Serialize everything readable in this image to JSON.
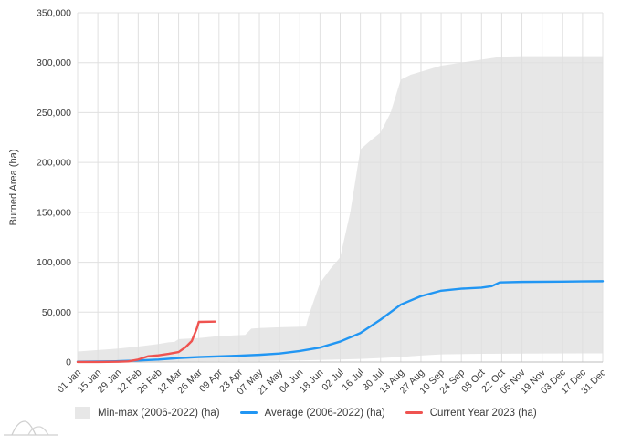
{
  "chart_data": {
    "type": "area",
    "title": "",
    "xlabel": "",
    "ylabel": "Burned Area (ha)",
    "grid": true,
    "legend_position": "bottom",
    "x_axis": {
      "unit": "weeks since 01 Jan",
      "range": [
        0,
        52
      ],
      "tick_interval_weeks": 2,
      "tick_labels": [
        "01 Jan",
        "15 Jan",
        "29 Jan",
        "12 Feb",
        "26 Feb",
        "12 Mar",
        "26 Mar",
        "09 Apr",
        "23 Apr",
        "07 May",
        "21 May",
        "04 Jun",
        "18 Jun",
        "02 Jul",
        "16 Jul",
        "30 Jul",
        "13 Aug",
        "27 Aug",
        "10 Sep",
        "24 Sep",
        "08 Oct",
        "22 Oct",
        "05 Nov",
        "19 Nov",
        "03 Dec",
        "17 Dec",
        "31 Dec"
      ]
    },
    "y_axis": {
      "range": [
        0,
        350000
      ],
      "ticks": [
        0,
        50000,
        100000,
        150000,
        200000,
        250000,
        300000,
        350000
      ],
      "tick_labels": [
        "0",
        "50,000",
        "100,000",
        "150,000",
        "200,000",
        "250,000",
        "300,000",
        "350,000"
      ]
    },
    "series": [
      {
        "id": "minmax",
        "name": "Min-max (2006-2022) (ha)",
        "type": "band",
        "color": "#e7e7e7",
        "max_points": [
          [
            0,
            10500
          ],
          [
            2,
            12000
          ],
          [
            4,
            13500
          ],
          [
            6,
            15500
          ],
          [
            8,
            18000
          ],
          [
            9,
            19800
          ],
          [
            9.6,
            20200
          ],
          [
            10,
            23000
          ],
          [
            12,
            24000
          ],
          [
            14,
            26000
          ],
          [
            16.6,
            27200
          ],
          [
            17.2,
            33500
          ],
          [
            18,
            34000
          ],
          [
            20,
            34800
          ],
          [
            22.6,
            35500
          ],
          [
            23,
            50000
          ],
          [
            24,
            79000
          ],
          [
            25,
            93000
          ],
          [
            26,
            105000
          ],
          [
            27,
            150000
          ],
          [
            28,
            213000
          ],
          [
            29,
            222000
          ],
          [
            30,
            230000
          ],
          [
            31,
            250000
          ],
          [
            32,
            283000
          ],
          [
            33,
            288000
          ],
          [
            34,
            291000
          ],
          [
            36,
            297000
          ],
          [
            38,
            300000
          ],
          [
            40,
            303000
          ],
          [
            42,
            306000
          ],
          [
            44,
            306500
          ],
          [
            48,
            306500
          ],
          [
            52,
            306500
          ]
        ],
        "min_points": [
          [
            0,
            300
          ],
          [
            4,
            400
          ],
          [
            8,
            500
          ],
          [
            12,
            700
          ],
          [
            16,
            900
          ],
          [
            20,
            1200
          ],
          [
            24,
            2000
          ],
          [
            26,
            2500
          ],
          [
            28,
            3100
          ],
          [
            30,
            4000
          ],
          [
            32,
            5000
          ],
          [
            34,
            6500
          ],
          [
            36,
            7700
          ],
          [
            40,
            8200
          ],
          [
            44,
            8500
          ],
          [
            52,
            8700
          ]
        ]
      },
      {
        "id": "average",
        "name": "Average (2006-2022) (ha)",
        "type": "line",
        "color": "#2196f3",
        "points": [
          [
            0,
            300
          ],
          [
            2,
            500
          ],
          [
            4,
            800
          ],
          [
            6,
            1500
          ],
          [
            8,
            2500
          ],
          [
            10,
            4000
          ],
          [
            12,
            5000
          ],
          [
            14,
            5700
          ],
          [
            16,
            6300
          ],
          [
            18,
            7200
          ],
          [
            20,
            8500
          ],
          [
            22,
            11000
          ],
          [
            24,
            14500
          ],
          [
            26,
            20500
          ],
          [
            28,
            29000
          ],
          [
            30,
            42500
          ],
          [
            32,
            57500
          ],
          [
            34,
            66000
          ],
          [
            36,
            71500
          ],
          [
            38,
            73500
          ],
          [
            40,
            74500
          ],
          [
            41,
            76000
          ],
          [
            41.8,
            79800
          ],
          [
            44,
            80300
          ],
          [
            48,
            80600
          ],
          [
            52,
            81000
          ]
        ]
      },
      {
        "id": "current",
        "name": "Current Year 2023 (ha)",
        "type": "line",
        "color": "#ef5350",
        "points": [
          [
            0,
            50
          ],
          [
            2,
            100
          ],
          [
            4,
            300
          ],
          [
            5,
            600
          ],
          [
            6,
            2500
          ],
          [
            7,
            5800
          ],
          [
            8,
            6700
          ],
          [
            9,
            8200
          ],
          [
            10,
            10000
          ],
          [
            10.7,
            15000
          ],
          [
            11.3,
            21000
          ],
          [
            11.8,
            33500
          ],
          [
            12,
            40200
          ],
          [
            13.6,
            40500
          ]
        ]
      }
    ]
  },
  "legend": {
    "items": [
      {
        "label": "Min-max (2006-2022) (ha)",
        "swatch": "area"
      },
      {
        "label": "Average (2006-2022) (ha)",
        "swatch": "line"
      },
      {
        "label": "Current Year 2023 (ha)",
        "swatch": "line"
      }
    ]
  },
  "icons": {
    "watermark": "hills-landscape-logo"
  }
}
